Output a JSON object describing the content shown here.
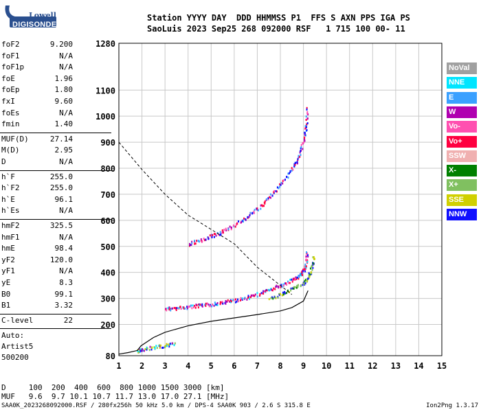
{
  "logo": {
    "line1": "Lowell",
    "line2": "DIGISONDE"
  },
  "header": {
    "row1": "Station YYYY DAY  DDD HHMMSS P1  FFS S AXN PPS IGA PS",
    "row2": "SaoLuis 2023 Sep25 268 092000 RSF   1 715 100 00- 11"
  },
  "params_group1": [
    {
      "key": "foF2",
      "val": "9.200"
    },
    {
      "key": "foF1",
      "val": "N/A"
    },
    {
      "key": "foF1p",
      "val": "N/A"
    },
    {
      "key": "foE",
      "val": "1.96"
    },
    {
      "key": "foEp",
      "val": "1.80"
    },
    {
      "key": "fxI",
      "val": "9.60"
    },
    {
      "key": "foEs",
      "val": "N/A"
    },
    {
      "key": "fmin",
      "val": "1.40"
    }
  ],
  "params_group2": [
    {
      "key": "MUF(D)",
      "val": "27.14"
    },
    {
      "key": "M(D)",
      "val": "2.95"
    },
    {
      "key": "D",
      "val": "N/A"
    }
  ],
  "params_group3": [
    {
      "key": "h`F",
      "val": "255.0"
    },
    {
      "key": "h`F2",
      "val": "255.0"
    },
    {
      "key": "h`E",
      "val": "96.1"
    },
    {
      "key": "h`Es",
      "val": "N/A"
    }
  ],
  "params_group4": [
    {
      "key": "hmF2",
      "val": "325.5"
    },
    {
      "key": "hmF1",
      "val": "N/A"
    },
    {
      "key": "hmE",
      "val": "98.4"
    },
    {
      "key": "yF2",
      "val": "120.0"
    },
    {
      "key": "yF1",
      "val": "N/A"
    },
    {
      "key": "yE",
      "val": "8.3"
    },
    {
      "key": "B0",
      "val": "99.1"
    },
    {
      "key": "B1",
      "val": "3.32"
    }
  ],
  "params_group5": [
    {
      "key": "C-level",
      "val": "22"
    }
  ],
  "autoscaling": {
    "line1": "Auto:",
    "line2": "Artist5",
    "line3": "500200"
  },
  "legend": [
    {
      "label": "NoVal",
      "color": "#a0a0a0"
    },
    {
      "label": "NNE",
      "color": "#00e5ff"
    },
    {
      "label": "E",
      "color": "#3aa0ff"
    },
    {
      "label": "W",
      "color": "#b000b0"
    },
    {
      "label": "Vo-",
      "color": "#ff50b0"
    },
    {
      "label": "Vo+",
      "color": "#ff0040"
    },
    {
      "label": "SSW",
      "color": "#f0b0b0"
    },
    {
      "label": "X-",
      "color": "#008000"
    },
    {
      "label": "X+",
      "color": "#80c060"
    },
    {
      "label": "SSE",
      "color": "#d0d000"
    },
    {
      "label": "NNW",
      "color": "#1010ff"
    }
  ],
  "muf_table": {
    "d_row": "D     100  200  400  600  800 1000 1500 3000 [km]",
    "muf_row": "MUF   9.6  9.7 10.1 10.7 11.7 13.0 17.0 27.1 [MHz]"
  },
  "footer": {
    "left": "SAA0K_2023268092000.RSF / 280fx256h 50 kHz 5.0 km / DPS-4 SAA0K 903 / 2.6 S 315.8 E",
    "right": "Ion2Png 1.3.17"
  },
  "chart_data": {
    "type": "scatter",
    "xlim": [
      1,
      15
    ],
    "ylim": [
      80,
      1280
    ],
    "x_ticks": [
      1,
      2,
      3,
      4,
      5,
      6,
      7,
      8,
      9,
      10,
      11,
      12,
      13,
      14,
      15
    ],
    "y_ticks": [
      80,
      200,
      300,
      400,
      500,
      600,
      700,
      800,
      900,
      1000,
      1100,
      1280
    ],
    "grid": true,
    "traces": [
      {
        "name": "F2 O-trace",
        "points": [
          [
            3.0,
            263
          ],
          [
            3.5,
            265
          ],
          [
            4.0,
            270
          ],
          [
            4.5,
            275
          ],
          [
            5.0,
            280
          ],
          [
            5.5,
            287
          ],
          [
            6.0,
            295
          ],
          [
            6.5,
            305
          ],
          [
            7.0,
            318
          ],
          [
            7.5,
            335
          ],
          [
            8.0,
            352
          ],
          [
            8.5,
            372
          ],
          [
            8.8,
            390
          ],
          [
            9.0,
            410
          ],
          [
            9.1,
            440
          ],
          [
            9.15,
            480
          ]
        ]
      },
      {
        "name": "F2 X-trace",
        "points": [
          [
            7.5,
            300
          ],
          [
            8.0,
            318
          ],
          [
            8.5,
            340
          ],
          [
            9.0,
            360
          ],
          [
            9.2,
            385
          ],
          [
            9.35,
            420
          ],
          [
            9.45,
            470
          ]
        ]
      },
      {
        "name": "2F O-trace",
        "points": [
          [
            4.0,
            512
          ],
          [
            4.5,
            525
          ],
          [
            5.0,
            542
          ],
          [
            5.5,
            560
          ],
          [
            6.0,
            585
          ],
          [
            6.5,
            612
          ],
          [
            7.0,
            645
          ],
          [
            7.5,
            690
          ],
          [
            8.0,
            740
          ],
          [
            8.5,
            800
          ],
          [
            8.8,
            850
          ],
          [
            9.0,
            910
          ],
          [
            9.1,
            960
          ],
          [
            9.15,
            1040
          ]
        ]
      },
      {
        "name": "E trace",
        "points": [
          [
            1.8,
            100
          ],
          [
            2.0,
            105
          ],
          [
            2.5,
            115
          ],
          [
            3.0,
            122
          ],
          [
            3.4,
            127
          ]
        ]
      }
    ],
    "profile_curve": [
      [
        1.0,
        86
      ],
      [
        1.4,
        92
      ],
      [
        1.8,
        100
      ],
      [
        1.96,
        118
      ],
      [
        2.5,
        150
      ],
      [
        3.0,
        170
      ],
      [
        4.0,
        195
      ],
      [
        5.0,
        212
      ],
      [
        6.0,
        225
      ],
      [
        7.0,
        238
      ],
      [
        8.0,
        252
      ],
      [
        8.5,
        265
      ],
      [
        9.0,
        290
      ],
      [
        9.2,
        330
      ]
    ],
    "dashed_curve": [
      [
        1.0,
        900
      ],
      [
        2.0,
        795
      ],
      [
        3.0,
        700
      ],
      [
        4.0,
        620
      ],
      [
        5.0,
        565
      ],
      [
        6.0,
        510
      ],
      [
        7.0,
        420
      ],
      [
        8.0,
        350
      ],
      [
        8.5,
        315
      ]
    ]
  }
}
